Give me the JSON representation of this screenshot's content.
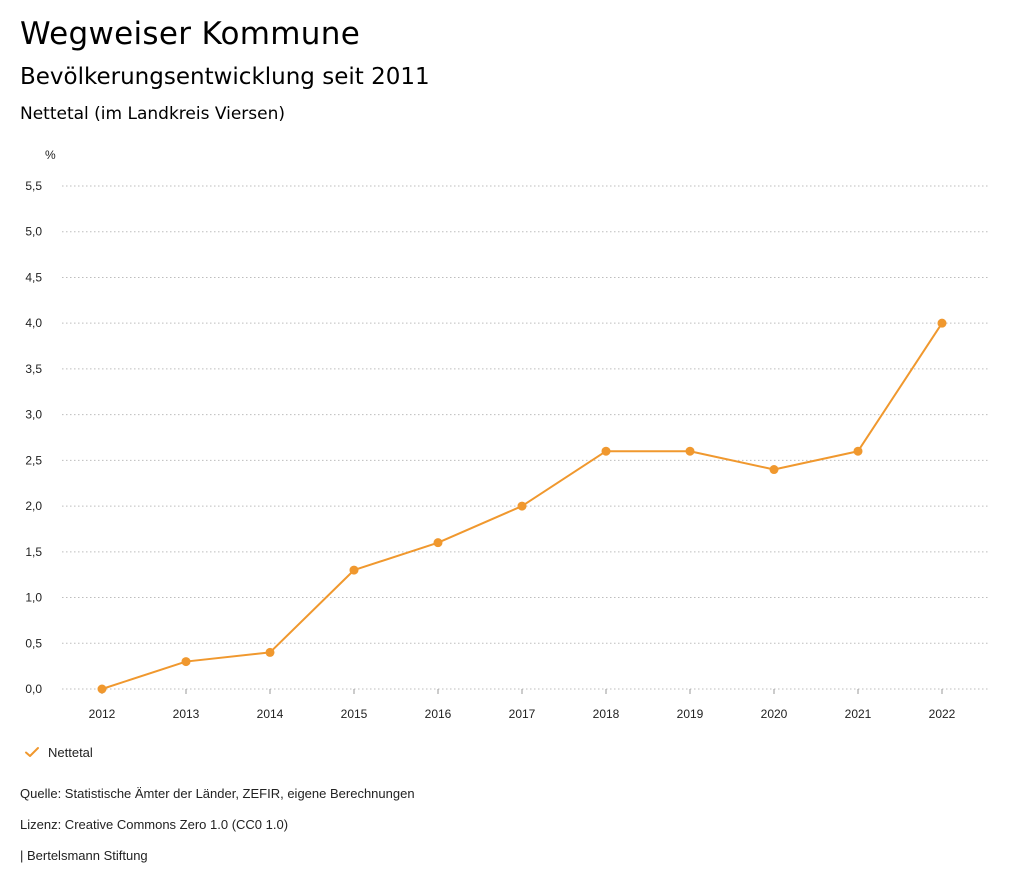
{
  "header": {
    "title": "Wegweiser Kommune",
    "subtitle": "Bevölkerungsentwicklung seit 2011",
    "region": "Nettetal (im Landkreis Viersen)"
  },
  "colors": {
    "series": "#f0982e",
    "grid": "#bdbdbd",
    "axis": "#9a9a9a",
    "text": "#222222"
  },
  "chart_data": {
    "type": "line",
    "title": "Bevölkerungsentwicklung seit 2011",
    "ylabel": "%",
    "xlabel": "",
    "categories": [
      "2012",
      "2013",
      "2014",
      "2015",
      "2016",
      "2017",
      "2018",
      "2019",
      "2020",
      "2021",
      "2022"
    ],
    "series": [
      {
        "name": "Nettetal",
        "values": [
          0.0,
          0.3,
          0.4,
          1.3,
          1.6,
          2.0,
          2.6,
          2.6,
          2.4,
          2.6,
          4.0
        ]
      }
    ],
    "ylim": [
      0,
      5.5
    ],
    "yticks": [
      0,
      0.5,
      1.0,
      1.5,
      2.0,
      2.5,
      3.0,
      3.5,
      4.0,
      4.5,
      5.0,
      5.5
    ],
    "ytick_labels": [
      "0,0",
      "0,5",
      "1,0",
      "1,5",
      "2,0",
      "2,5",
      "3,0",
      "3,5",
      "4,0",
      "4,5",
      "5,0",
      "5,5"
    ],
    "grid": "dotted",
    "legend": "bottom-left"
  },
  "legend": {
    "items": [
      {
        "label": "Nettetal"
      }
    ]
  },
  "footer": {
    "source": "Quelle: Statistische Ämter der Länder, ZEFIR, eigene Berechnungen",
    "license": "Lizenz: Creative Commons Zero 1.0 (CC0 1.0)",
    "publisher": "| Bertelsmann Stiftung"
  }
}
